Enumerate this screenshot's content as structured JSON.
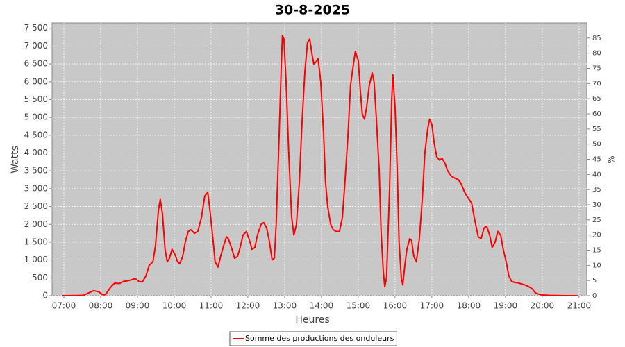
{
  "chart_data": {
    "type": "line",
    "title": "30-8-2025",
    "x_label": "Heures",
    "y_label": "Watts",
    "y2_label": "%",
    "x": [
      6.96,
      7.34,
      7.53,
      7.68,
      7.81,
      7.94,
      8.06,
      8.13,
      8.28,
      8.38,
      8.51,
      8.62,
      8.75,
      8.85,
      8.94,
      9.04,
      9.13,
      9.23,
      9.32,
      9.42,
      9.49,
      9.57,
      9.62,
      9.68,
      9.75,
      9.81,
      9.87,
      9.94,
      10.02,
      10.09,
      10.15,
      10.23,
      10.3,
      10.38,
      10.45,
      10.55,
      10.64,
      10.74,
      10.83,
      10.91,
      10.98,
      11.06,
      11.11,
      11.19,
      11.26,
      11.34,
      11.42,
      11.47,
      11.57,
      11.64,
      11.72,
      11.79,
      11.87,
      11.96,
      12.06,
      12.11,
      12.19,
      12.26,
      12.36,
      12.43,
      12.51,
      12.58,
      12.66,
      12.72,
      12.77,
      12.85,
      12.91,
      12.94,
      12.98,
      13.04,
      13.11,
      13.19,
      13.25,
      13.32,
      13.4,
      13.47,
      13.55,
      13.62,
      13.68,
      13.74,
      13.79,
      13.85,
      13.91,
      13.98,
      14.06,
      14.11,
      14.17,
      14.25,
      14.32,
      14.4,
      14.49,
      14.57,
      14.64,
      14.72,
      14.79,
      14.87,
      14.92,
      15.0,
      15.06,
      15.11,
      15.17,
      15.23,
      15.3,
      15.38,
      15.43,
      15.49,
      15.57,
      15.62,
      15.68,
      15.72,
      15.77,
      15.85,
      15.91,
      15.94,
      16.0,
      16.06,
      16.11,
      16.17,
      16.21,
      16.26,
      16.32,
      16.4,
      16.45,
      16.51,
      16.58,
      16.66,
      16.74,
      16.81,
      16.89,
      16.94,
      17.0,
      17.06,
      17.13,
      17.21,
      17.28,
      17.36,
      17.43,
      17.53,
      17.62,
      17.72,
      17.79,
      17.89,
      17.98,
      18.08,
      18.17,
      18.26,
      18.34,
      18.42,
      18.49,
      18.57,
      18.64,
      18.72,
      18.79,
      18.87,
      18.94,
      19.02,
      19.09,
      19.17,
      19.25,
      19.34,
      19.43,
      19.53,
      19.62,
      19.72,
      19.81,
      19.91,
      20.0,
      20.17,
      20.36,
      20.64,
      20.96
    ],
    "series": [
      {
        "name": "Somme des productions des onduleurs",
        "color": "#ff0000",
        "values": [
          0,
          5,
          10,
          80,
          140,
          110,
          30,
          30,
          250,
          350,
          340,
          400,
          420,
          450,
          480,
          400,
          380,
          550,
          850,
          950,
          1400,
          2400,
          2700,
          2300,
          1300,
          950,
          1050,
          1300,
          1150,
          950,
          900,
          1100,
          1500,
          1800,
          1850,
          1750,
          1800,
          2200,
          2800,
          2900,
          2300,
          1500,
          950,
          800,
          1100,
          1400,
          1650,
          1600,
          1300,
          1050,
          1100,
          1350,
          1700,
          1800,
          1500,
          1300,
          1350,
          1700,
          2000,
          2050,
          1900,
          1550,
          1000,
          1050,
          2000,
          4500,
          6500,
          7300,
          7200,
          6000,
          4000,
          2200,
          1700,
          2000,
          3200,
          4800,
          6300,
          7100,
          7200,
          6800,
          6500,
          6550,
          6650,
          6000,
          4500,
          3200,
          2500,
          2000,
          1850,
          1800,
          1800,
          2200,
          3200,
          4500,
          5900,
          6500,
          6850,
          6600,
          5700,
          5100,
          4950,
          5300,
          5900,
          6250,
          6000,
          5000,
          3500,
          1800,
          700,
          250,
          500,
          3000,
          5500,
          6200,
          5300,
          3500,
          1500,
          500,
          300,
          800,
          1300,
          1600,
          1550,
          1100,
          950,
          1600,
          2700,
          4000,
          4700,
          4950,
          4800,
          4300,
          3900,
          3800,
          3850,
          3700,
          3500,
          3350,
          3300,
          3250,
          3150,
          2900,
          2750,
          2600,
          2100,
          1650,
          1600,
          1900,
          1950,
          1700,
          1350,
          1500,
          1800,
          1700,
          1300,
          950,
          550,
          400,
          370,
          360,
          330,
          300,
          260,
          200,
          80,
          40,
          20,
          10,
          5,
          0,
          0
        ]
      }
    ],
    "xlim": [
      6.68,
      21.21
    ],
    "xticks": [
      {
        "value": 7,
        "label": "07:00"
      },
      {
        "value": 8,
        "label": "08:00"
      },
      {
        "value": 9,
        "label": "09:00"
      },
      {
        "value": 10,
        "label": "10:00"
      },
      {
        "value": 11,
        "label": "11:00"
      },
      {
        "value": 12,
        "label": "12:00"
      },
      {
        "value": 13,
        "label": "13:00"
      },
      {
        "value": 14,
        "label": "14:00"
      },
      {
        "value": 15,
        "label": "15:00"
      },
      {
        "value": 16,
        "label": "16:00"
      },
      {
        "value": 17,
        "label": "17:00"
      },
      {
        "value": 18,
        "label": "18:00"
      },
      {
        "value": 19,
        "label": "19:00"
      },
      {
        "value": 20,
        "label": "20:00"
      },
      {
        "value": 21,
        "label": "21:00"
      }
    ],
    "ylim": [
      0,
      7650
    ],
    "yticks": [
      0,
      500,
      {
        "value": 1000,
        "label": "1 000"
      },
      {
        "value": 1500,
        "label": "1 500"
      },
      {
        "value": 2000,
        "label": "2 000"
      },
      {
        "value": 2500,
        "label": "2 500"
      },
      {
        "value": 3000,
        "label": "3 000"
      },
      {
        "value": 3500,
        "label": "3 500"
      },
      {
        "value": 4000,
        "label": "4 000"
      },
      {
        "value": 4500,
        "label": "4 500"
      },
      {
        "value": 5000,
        "label": "5 000"
      },
      {
        "value": 5500,
        "label": "5 500"
      },
      {
        "value": 6000,
        "label": "6 000"
      },
      {
        "value": 6500,
        "label": "6 500"
      },
      {
        "value": 7000,
        "label": "7 000"
      },
      {
        "value": 7500,
        "label": "7 500"
      }
    ],
    "y2lim": [
      0,
      90
    ],
    "y2ticks": [
      0,
      5,
      10,
      15,
      20,
      25,
      30,
      35,
      40,
      45,
      50,
      55,
      60,
      65,
      70,
      75,
      80,
      85
    ],
    "grid": true,
    "legend": "bottom",
    "plot_background": "#c8c8c8"
  }
}
